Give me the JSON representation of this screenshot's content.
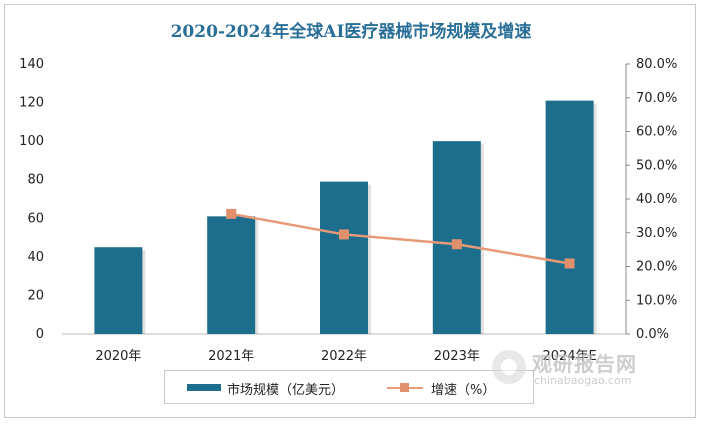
{
  "chart_data": {
    "type": "bar",
    "title": "2020-2024年全球AI医疗器械市场规模及增速",
    "categories": [
      "2020年",
      "2021年",
      "2022年",
      "2023年",
      "2024年E"
    ],
    "series": [
      {
        "name": "市场规模（亿美元）",
        "type": "bar",
        "axis": "left",
        "values": [
          45,
          61,
          79,
          100,
          121
        ]
      },
      {
        "name": "增速（%）",
        "type": "line",
        "axis": "right",
        "values": [
          null,
          35.6,
          29.5,
          26.6,
          20.9
        ]
      }
    ],
    "ylim": [
      0,
      140
    ],
    "y_ticks": [
      0,
      20,
      40,
      60,
      80,
      100,
      120,
      140
    ],
    "y2lim": [
      0,
      80
    ],
    "y2_ticks": [
      "0.0%",
      "10.0%",
      "20.0%",
      "30.0%",
      "40.0%",
      "50.0%",
      "60.0%",
      "70.0%",
      "80.0%"
    ],
    "legend_position": "bottom",
    "grid": false,
    "colors": {
      "bar": "#1c6e8c",
      "line": "#e89a78",
      "marker": "#e0906c",
      "title": "#2a6f97"
    }
  },
  "watermark": {
    "brand": "观研报告网",
    "url": "chinabaogao.com"
  }
}
